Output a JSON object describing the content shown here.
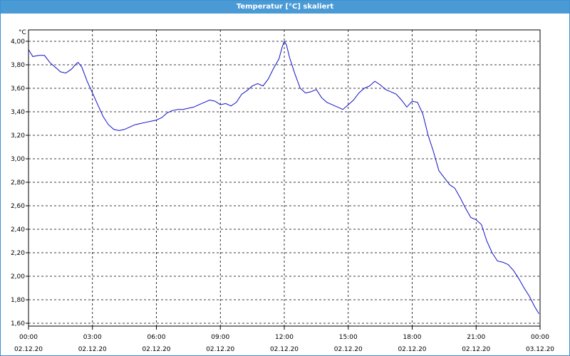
{
  "window": {
    "title": "Temperatur [°C] skaliert"
  },
  "chart_data": {
    "type": "line",
    "title": "Temperatur [°C] skaliert",
    "ylabel": "°C",
    "xlabel": "",
    "ylim": [
      1.6,
      4.0
    ],
    "xlim": [
      0,
      24
    ],
    "grid": true,
    "line_color": "#1010c8",
    "y_ticks": [
      "1,60",
      "1,80",
      "2,00",
      "2,20",
      "2,40",
      "2,60",
      "2,80",
      "3,00",
      "3,20",
      "3,40",
      "3,60",
      "3,80",
      "4,00"
    ],
    "x_ticks": [
      {
        "time": "00:00",
        "date": "02.12.20"
      },
      {
        "time": "03:00",
        "date": "02.12.20"
      },
      {
        "time": "06:00",
        "date": "02.12.20"
      },
      {
        "time": "09:00",
        "date": "02.12.20"
      },
      {
        "time": "12:00",
        "date": "02.12.20"
      },
      {
        "time": "15:00",
        "date": "02.12.20"
      },
      {
        "time": "18:00",
        "date": "02.12.20"
      },
      {
        "time": "21:00",
        "date": "02.12.20"
      },
      {
        "time": "00:00",
        "date": "03.12.20"
      }
    ],
    "series": [
      {
        "x": [
          0,
          0.1,
          0.2,
          0.5,
          0.75,
          1,
          1.25,
          1.5,
          1.75,
          2,
          2.25,
          2.33,
          2.5,
          2.75,
          3,
          3.25,
          3.5,
          3.75,
          4,
          4.25,
          4.5,
          4.75,
          5,
          5.25,
          5.5,
          5.75,
          6,
          6.25,
          6.5,
          6.75,
          7,
          7.25,
          7.5,
          7.75,
          8,
          8.25,
          8.5,
          8.75,
          9,
          9.25,
          9.5,
          9.75,
          10,
          10.25,
          10.5,
          10.75,
          11,
          11.25,
          11.5,
          11.75,
          11.9,
          12,
          12.1,
          12.25,
          12.5,
          12.75,
          13,
          13.25,
          13.5,
          13.75,
          14,
          14.25,
          14.5,
          14.75,
          15,
          15.25,
          15.5,
          15.75,
          16,
          16.25,
          16.5,
          16.75,
          17,
          17.25,
          17.5,
          17.75,
          18,
          18.25,
          18.5,
          18.75,
          19,
          19.25,
          19.5,
          19.75,
          20,
          20.25,
          20.5,
          20.75,
          21,
          21.25,
          21.5,
          21.75,
          22,
          22.25,
          22.5,
          22.75,
          23,
          23.25,
          23.5,
          23.75,
          23.95
        ],
        "y": [
          3.93,
          3.9,
          3.87,
          3.88,
          3.88,
          3.82,
          3.78,
          3.74,
          3.73,
          3.76,
          3.81,
          3.82,
          3.78,
          3.66,
          3.56,
          3.46,
          3.36,
          3.29,
          3.25,
          3.24,
          3.25,
          3.27,
          3.29,
          3.3,
          3.31,
          3.32,
          3.33,
          3.35,
          3.39,
          3.41,
          3.42,
          3.42,
          3.43,
          3.44,
          3.46,
          3.48,
          3.5,
          3.49,
          3.46,
          3.47,
          3.45,
          3.48,
          3.55,
          3.58,
          3.62,
          3.64,
          3.62,
          3.68,
          3.77,
          3.85,
          3.95,
          4.0,
          3.97,
          3.86,
          3.72,
          3.6,
          3.56,
          3.57,
          3.59,
          3.52,
          3.48,
          3.46,
          3.44,
          3.42,
          3.46,
          3.5,
          3.56,
          3.6,
          3.62,
          3.66,
          3.63,
          3.59,
          3.57,
          3.55,
          3.5,
          3.44,
          3.49,
          3.48,
          3.38,
          3.2,
          3.06,
          2.9,
          2.84,
          2.78,
          2.75,
          2.67,
          2.58,
          2.5,
          2.48,
          2.44,
          2.3,
          2.2,
          2.13,
          2.12,
          2.1,
          2.05,
          1.98,
          1.9,
          1.83,
          1.74,
          1.68
        ]
      }
    ]
  }
}
